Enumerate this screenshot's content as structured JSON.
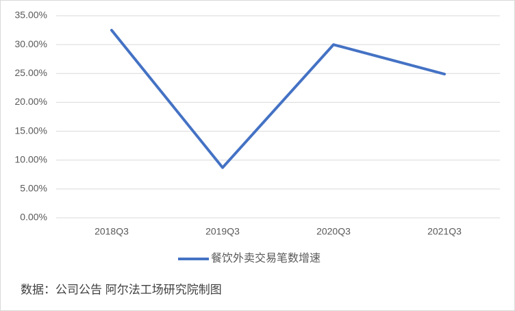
{
  "chart_data": {
    "type": "line",
    "categories": [
      "2018Q3",
      "2019Q3",
      "2020Q3",
      "2021Q3"
    ],
    "series": [
      {
        "name": "餐饮外卖交易笔数增速",
        "color": "#4472c4",
        "values": [
          32.5,
          8.7,
          30.0,
          24.9
        ]
      }
    ],
    "ylim": [
      0,
      35
    ],
    "yticks": [
      {
        "value": 0,
        "label": "0.00%"
      },
      {
        "value": 5,
        "label": "5.00%"
      },
      {
        "value": 10,
        "label": "10.00%"
      },
      {
        "value": 15,
        "label": "15.00%"
      },
      {
        "value": 20,
        "label": "20.00%"
      },
      {
        "value": 25,
        "label": "25.00%"
      },
      {
        "value": 30,
        "label": "30.00%"
      },
      {
        "value": 35,
        "label": "35.00%"
      }
    ],
    "grid": true,
    "legend": "bottom",
    "source": "数据：公司公告 阿尔法工场研究院制图"
  }
}
